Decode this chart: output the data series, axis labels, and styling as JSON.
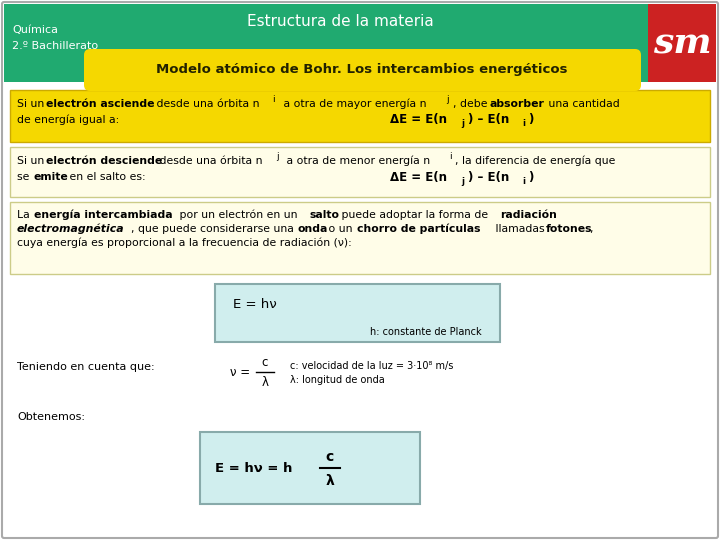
{
  "bg_color": "#ffffff",
  "header_bg": "#20aa70",
  "header_text_color": "#ffffff",
  "header_title": "Estructura de la materia",
  "header_subtitle1": "Química",
  "header_subtitle2": "2.º Bachillerato",
  "sm_bg": "#cc2222",
  "yellow_title_bg": "#f5d800",
  "yellow_title_text": "Modelo atómico de Bohr. Los intercambios energéticos",
  "box1_bg": "#f5d800",
  "box1_border": "#ccaa00",
  "box2_bg": "#fffde8",
  "box2_border": "#cccc88",
  "box3_bg": "#fffde8",
  "box3_border": "#cccc88",
  "formula_box_bg": "#d0eeee",
  "formula_box_border": "#88aaaa",
  "outer_border": "#aaaaaa"
}
